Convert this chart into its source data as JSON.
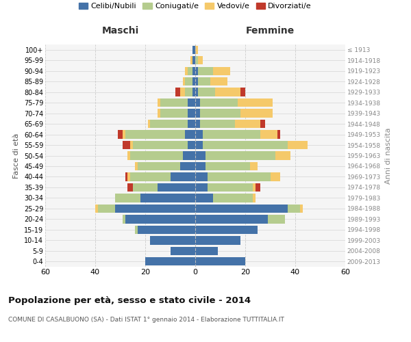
{
  "age_groups": [
    "0-4",
    "5-9",
    "10-14",
    "15-19",
    "20-24",
    "25-29",
    "30-34",
    "35-39",
    "40-44",
    "45-49",
    "50-54",
    "55-59",
    "60-64",
    "65-69",
    "70-74",
    "75-79",
    "80-84",
    "85-89",
    "90-94",
    "95-99",
    "100+"
  ],
  "birth_years": [
    "2009-2013",
    "2004-2008",
    "1999-2003",
    "1994-1998",
    "1989-1993",
    "1984-1988",
    "1979-1983",
    "1974-1978",
    "1969-1973",
    "1964-1968",
    "1959-1963",
    "1954-1958",
    "1949-1953",
    "1944-1948",
    "1939-1943",
    "1934-1938",
    "1929-1933",
    "1924-1928",
    "1919-1923",
    "1914-1918",
    "≤ 1913"
  ],
  "maschi_celibi": [
    20,
    10,
    18,
    23,
    28,
    32,
    22,
    15,
    10,
    6,
    5,
    3,
    4,
    3,
    3,
    3,
    1,
    1,
    1,
    1,
    1
  ],
  "maschi_coniugati": [
    0,
    0,
    0,
    1,
    1,
    7,
    10,
    10,
    16,
    17,
    21,
    22,
    24,
    15,
    11,
    11,
    3,
    3,
    2,
    0,
    0
  ],
  "maschi_vedovi": [
    0,
    0,
    0,
    0,
    0,
    1,
    0,
    0,
    1,
    1,
    1,
    1,
    1,
    1,
    1,
    1,
    2,
    1,
    1,
    1,
    0
  ],
  "maschi_divorziati": [
    0,
    0,
    0,
    0,
    0,
    0,
    0,
    2,
    1,
    0,
    0,
    3,
    2,
    0,
    0,
    0,
    2,
    0,
    0,
    0,
    0
  ],
  "femmine_nubili": [
    20,
    9,
    18,
    25,
    29,
    37,
    7,
    5,
    5,
    4,
    4,
    3,
    3,
    2,
    2,
    2,
    1,
    1,
    1,
    0,
    0
  ],
  "femmine_coniugate": [
    0,
    0,
    0,
    0,
    7,
    5,
    16,
    18,
    25,
    18,
    28,
    34,
    23,
    14,
    16,
    15,
    7,
    5,
    6,
    1,
    0
  ],
  "femmine_vedove": [
    0,
    0,
    0,
    0,
    0,
    1,
    1,
    1,
    4,
    3,
    6,
    8,
    7,
    10,
    13,
    14,
    10,
    7,
    7,
    2,
    1
  ],
  "femmine_divorziate": [
    0,
    0,
    0,
    0,
    0,
    0,
    0,
    2,
    0,
    0,
    0,
    0,
    1,
    2,
    0,
    0,
    2,
    0,
    0,
    0,
    0
  ],
  "color_celibi": "#4472a8",
  "color_coniugati": "#b5cc8e",
  "color_vedovi": "#f5c96a",
  "color_divorziati": "#c0392b",
  "xlim": 60,
  "title": "Popolazione per età, sesso e stato civile - 2014",
  "subtitle": "COMUNE DI CASALBUONO (SA) - Dati ISTAT 1° gennaio 2014 - Elaborazione TUTTITALIA.IT",
  "ylabel_left": "Fasce di età",
  "ylabel_right": "Anni di nascita",
  "label_maschi": "Maschi",
  "label_femmine": "Femmine",
  "legend_labels": [
    "Celibi/Nubili",
    "Coniugati/e",
    "Vedovi/e",
    "Divorziati/e"
  ],
  "bg_color": "#f5f5f5",
  "grid_color": "#cccccc"
}
